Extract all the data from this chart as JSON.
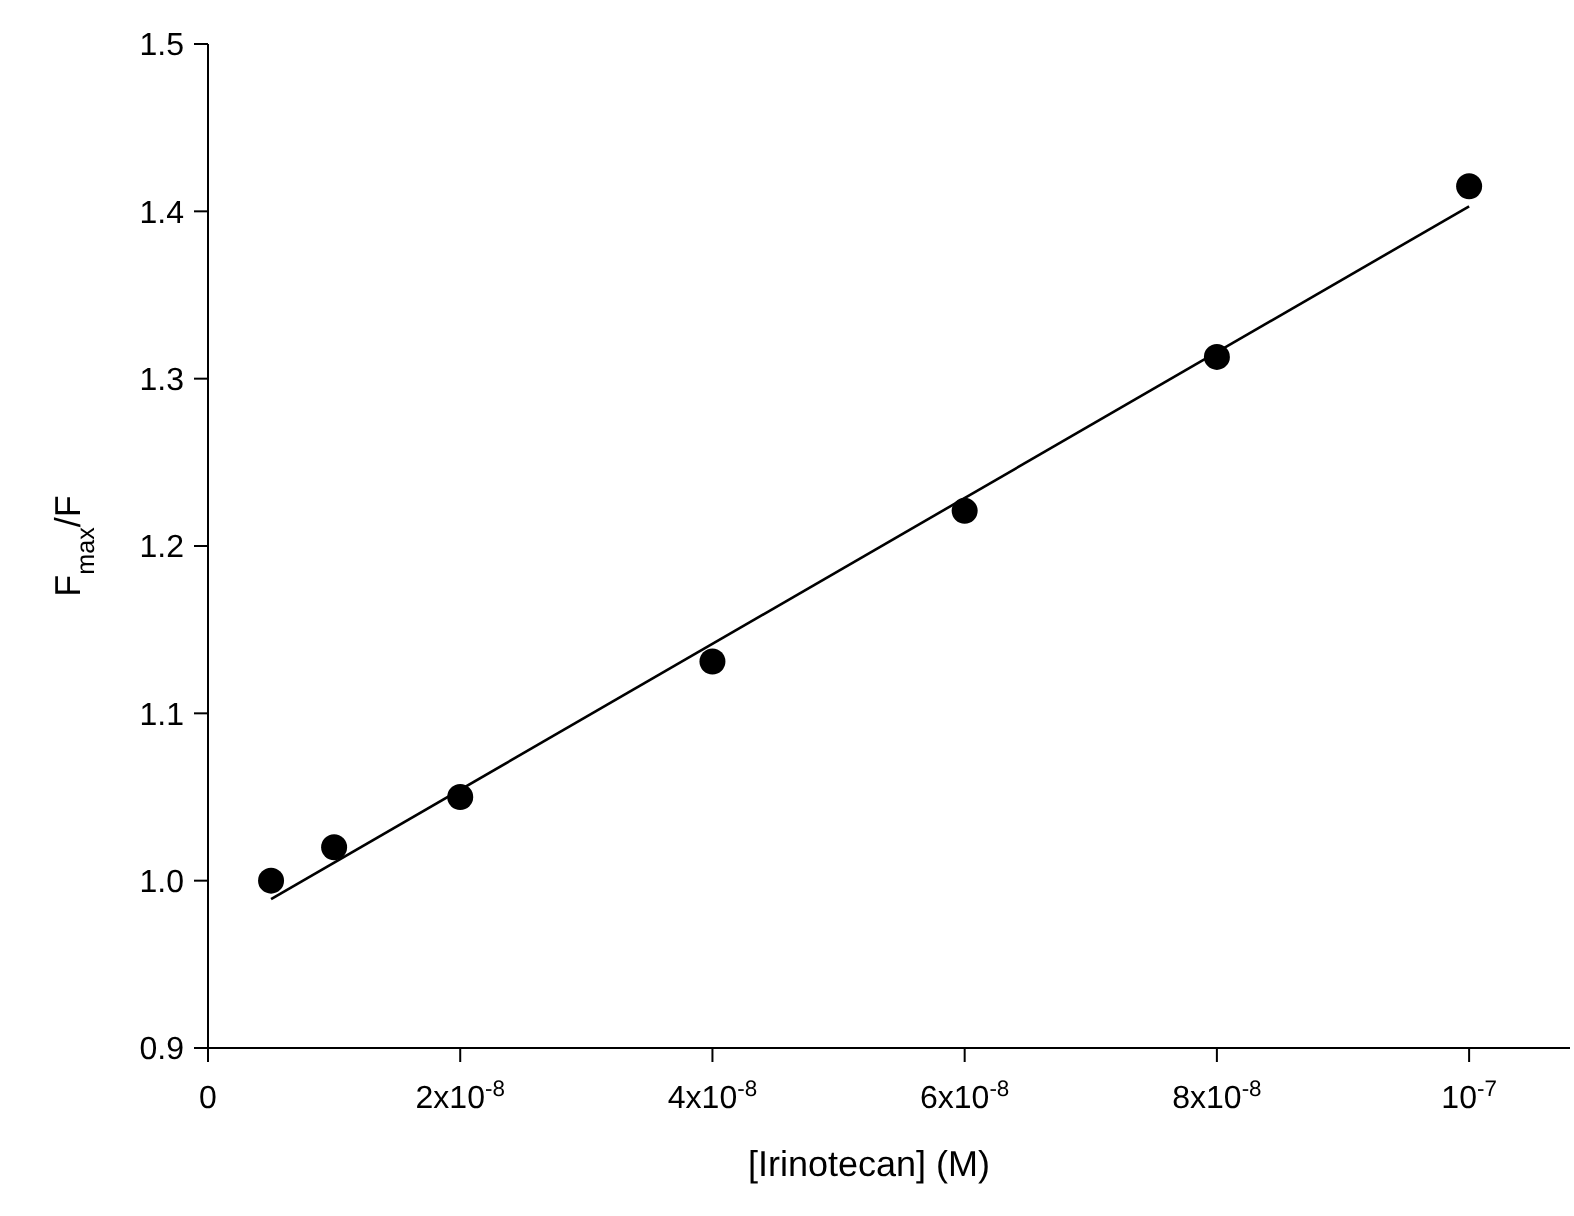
{
  "chart_data": {
    "type": "scatter",
    "xlabel": "[Irinotecan] (M)",
    "ylabel": "F$_{max}$/F",
    "xlim": [
      0,
      1.08e-07
    ],
    "ylim": [
      0.9,
      1.5
    ],
    "xticks": [
      0,
      {
        "value": 2e-08,
        "label": "2x10$^{-8}$"
      },
      {
        "value": 4e-08,
        "label": "4x10$^{-8}$"
      },
      {
        "value": 6e-08,
        "label": "6x10$^{-8}$"
      },
      {
        "value": 8e-08,
        "label": "8x10$^{-8}$"
      },
      {
        "value": 1e-07,
        "label": "10$^{-7}$"
      }
    ],
    "yticks": [
      {
        "value": 0.9,
        "label": "0.9"
      },
      {
        "value": 1.0,
        "label": "1.0"
      },
      {
        "value": 1.1,
        "label": "1.1"
      },
      {
        "value": 1.2,
        "label": "1.2"
      },
      {
        "value": 1.3,
        "label": "1.3"
      },
      {
        "value": 1.4,
        "label": "1.4"
      },
      {
        "value": 1.5,
        "label": "1.5"
      }
    ],
    "grid": false,
    "series": [
      {
        "color": "#000000",
        "marker": "circle",
        "x": [
          5e-09,
          1e-08,
          2e-08,
          4e-08,
          6e-08,
          8e-08,
          1e-07
        ],
        "values": [
          1.0,
          1.02,
          1.05,
          1.131,
          1.221,
          1.313,
          1.415
        ]
      },
      {
        "type": "line",
        "color": "#000000",
        "line_style": "solid",
        "x": [
          5e-09,
          1e-07
        ],
        "values": [
          0.989,
          1.403
        ]
      }
    ]
  }
}
